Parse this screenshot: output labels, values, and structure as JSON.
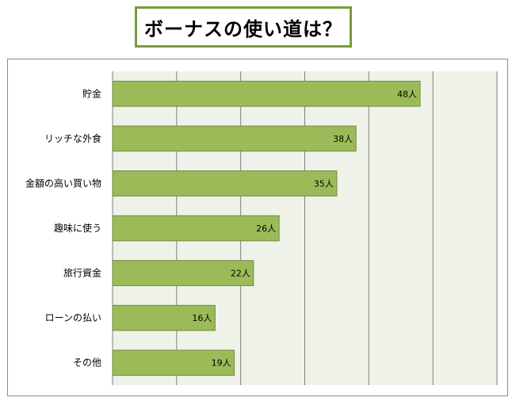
{
  "chart_data": {
    "type": "bar",
    "orientation": "horizontal",
    "title": "ボーナスの使い道は？",
    "categories": [
      "貯金",
      "リッチな外食",
      "金額の高い買い物",
      "趣味に使う",
      "旅行資金",
      "ローンの払い",
      "その他"
    ],
    "values": [
      48,
      38,
      35,
      26,
      22,
      16,
      19
    ],
    "data_labels": [
      "48人",
      "38人",
      "35人",
      "26人",
      "22人",
      "16人",
      "19人"
    ],
    "xlim": [
      0,
      60
    ],
    "grid": true,
    "legend": "none",
    "colors": {
      "bar": "#9bbb59",
      "bar_border": "#71893f",
      "plot_bg": "#eff2e8",
      "title_border": "#7a9a3c",
      "grid": "#7f7f7f"
    }
  }
}
